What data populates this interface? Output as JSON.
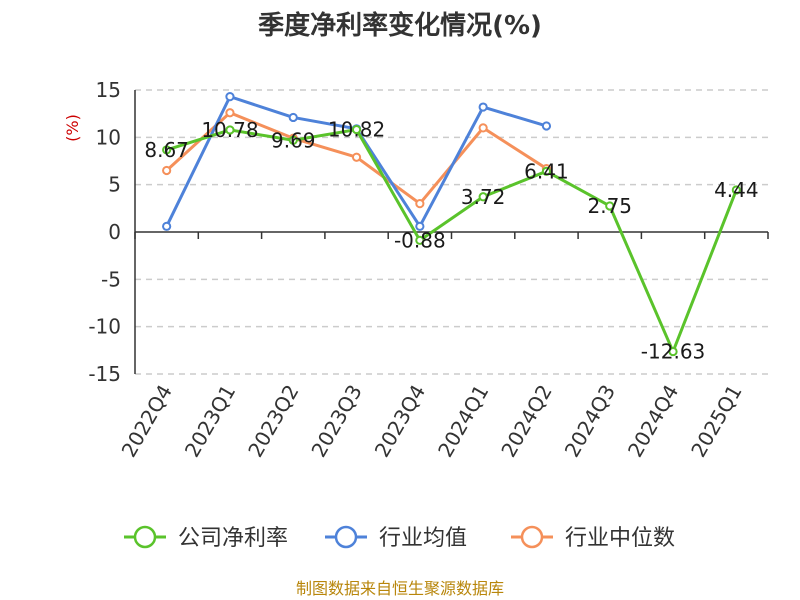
{
  "chart_data": {
    "type": "line",
    "title": "季度净利率变化情况(%)",
    "ylabel": "(%)",
    "xlabel": "",
    "ylim": [
      -15,
      15
    ],
    "yticks": [
      15,
      10,
      5,
      0,
      -5,
      -10,
      -15
    ],
    "grid": true,
    "legend_position": "bottom",
    "categories": [
      "2022Q4",
      "2023Q1",
      "2023Q2",
      "2023Q3",
      "2023Q4",
      "2024Q1",
      "2024Q2",
      "2024Q3",
      "2024Q4",
      "2025Q1"
    ],
    "series": [
      {
        "name": "公司净利率",
        "color": "#5ac32b",
        "values": [
          8.67,
          10.78,
          9.69,
          10.82,
          -0.88,
          3.72,
          6.41,
          2.75,
          -12.63,
          4.44
        ],
        "labels": [
          "8.67",
          "10.78",
          "9.69",
          "10.82",
          "-0.88",
          "3.72",
          "6.41",
          "2.75",
          "-12.63",
          "4.44"
        ]
      },
      {
        "name": "行业均值",
        "color": "#4e82d9",
        "values": [
          0.6,
          14.3,
          12.1,
          10.9,
          0.6,
          13.2,
          11.2,
          null,
          null,
          null
        ]
      },
      {
        "name": "行业中位数",
        "color": "#f5905a",
        "values": [
          6.5,
          12.6,
          9.9,
          7.9,
          3.0,
          11.0,
          6.7,
          null,
          null,
          null
        ]
      }
    ]
  },
  "source_text": "制图数据来自恒生聚源数据库"
}
